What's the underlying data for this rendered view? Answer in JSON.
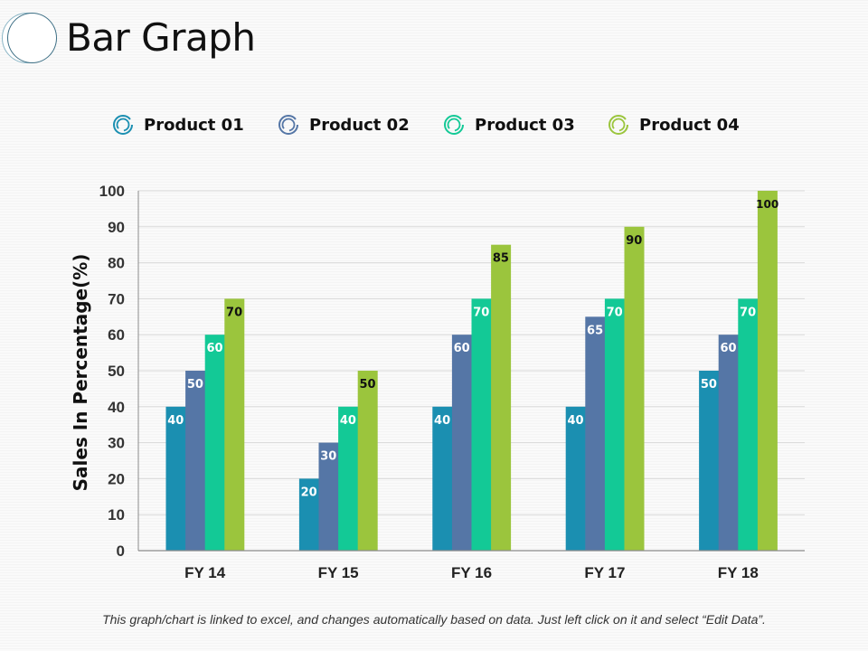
{
  "page": {
    "title": "Bar Graph",
    "footnote": "This graph/chart is linked to excel, and changes automatically based on data. Just left click on it and select “Edit Data”."
  },
  "legend": [
    {
      "label": "Product 01",
      "color": "#1b8fb1",
      "icon": "ring-icon"
    },
    {
      "label": "Product 02",
      "color": "#5576a6",
      "icon": "ring-icon"
    },
    {
      "label": "Product 03",
      "color": "#13c996",
      "icon": "ring-icon"
    },
    {
      "label": "Product 04",
      "color": "#9bc53d",
      "icon": "ring-icon"
    }
  ],
  "chart_data": {
    "type": "bar",
    "title": "Bar Graph",
    "xlabel": "",
    "ylabel": "Sales In Percentage(%)",
    "ylim": [
      0,
      100
    ],
    "yticks": [
      0,
      10,
      20,
      30,
      40,
      50,
      60,
      70,
      80,
      90,
      100
    ],
    "grid": true,
    "legend_position": "top",
    "categories": [
      "FY 14",
      "FY 15",
      "FY 16",
      "FY 17",
      "FY 18"
    ],
    "series": [
      {
        "name": "Product 01",
        "color": "#1b8fb1",
        "label_color": "#ffffff",
        "values": [
          40,
          20,
          40,
          40,
          50
        ]
      },
      {
        "name": "Product 02",
        "color": "#5576a6",
        "label_color": "#ffffff",
        "values": [
          50,
          30,
          60,
          65,
          60
        ]
      },
      {
        "name": "Product 03",
        "color": "#13c996",
        "label_color": "#ffffff",
        "values": [
          60,
          40,
          70,
          70,
          70
        ]
      },
      {
        "name": "Product 04",
        "color": "#9bc53d",
        "label_color": "#111111",
        "values": [
          70,
          50,
          85,
          90,
          100
        ]
      }
    ],
    "data_labels": true
  }
}
